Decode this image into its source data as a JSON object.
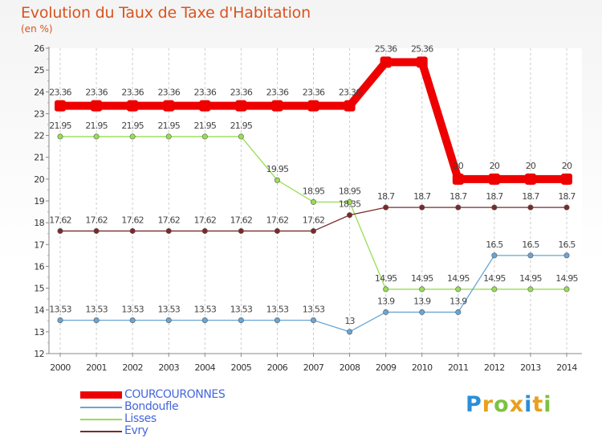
{
  "chart_data": {
    "type": "line",
    "title": "Evolution du Taux de Taxe d'Habitation",
    "subtitle": "(en %)",
    "xlabel": "",
    "ylabel": "",
    "x": [
      "2000",
      "2001",
      "2002",
      "2003",
      "2004",
      "2005",
      "2006",
      "2007",
      "2008",
      "2009",
      "2010",
      "2011",
      "2012",
      "2013",
      "2014"
    ],
    "ylim": [
      12,
      26
    ],
    "yticks": [
      "12",
      "13",
      "14",
      "15",
      "16",
      "17",
      "18",
      "19",
      "20",
      "21",
      "22",
      "23",
      "24",
      "25",
      "26"
    ],
    "grid": "vertical dashed",
    "legend_position": "bottom-left",
    "series": [
      {
        "name": "COURCOURONNES",
        "color": "#ee0000",
        "labels": [
          "23.36",
          "23.36",
          "23.36",
          "23.36",
          "23.36",
          "23.36",
          "23.36",
          "23.36",
          "23.36",
          "25.36",
          "25.36",
          "20",
          "20",
          "20",
          "20"
        ],
        "values": [
          23.36,
          23.36,
          23.36,
          23.36,
          23.36,
          23.36,
          23.36,
          23.36,
          23.36,
          25.36,
          25.36,
          20,
          20,
          20,
          20
        ]
      },
      {
        "name": "Bondoufle",
        "color": "#6aa6d4",
        "labels": [
          "13.53",
          "13.53",
          "13.53",
          "13.53",
          "13.53",
          "13.53",
          "13.53",
          "13.53",
          "13",
          "13.9",
          "13.9",
          "13.9",
          "16.5",
          "16.5",
          "16.5"
        ],
        "values": [
          13.53,
          13.53,
          13.53,
          13.53,
          13.53,
          13.53,
          13.53,
          13.53,
          13,
          13.9,
          13.9,
          13.9,
          16.5,
          16.5,
          16.5
        ]
      },
      {
        "name": "Lisses",
        "color": "#99dd55",
        "labels": [
          "21.95",
          "21.95",
          "21.95",
          "21.95",
          "21.95",
          "21.95",
          "19.95",
          "18.95",
          "18.95",
          "14.95",
          "14.95",
          "14.95",
          "14.95",
          "14.95",
          "14.95"
        ],
        "values": [
          21.95,
          21.95,
          21.95,
          21.95,
          21.95,
          21.95,
          19.95,
          18.95,
          18.95,
          14.95,
          14.95,
          14.95,
          14.95,
          14.95,
          14.95
        ]
      },
      {
        "name": "Evry",
        "color": "#7a2a2a",
        "labels": [
          "17.62",
          "17.62",
          "17.62",
          "17.62",
          "17.62",
          "17.62",
          "17.62",
          "17.62",
          "18.35",
          "18.7",
          "18.7",
          "18.7",
          "18.7",
          "18.7",
          "18.7"
        ],
        "values": [
          17.62,
          17.62,
          17.62,
          17.62,
          17.62,
          17.62,
          17.62,
          17.62,
          18.35,
          18.7,
          18.7,
          18.7,
          18.7,
          18.7,
          18.7
        ]
      }
    ],
    "legend": [
      {
        "label": "COURCOURONNES",
        "color": "#ee0000",
        "text_color": "#4466dd"
      },
      {
        "label": "Bondoufle",
        "color": "#6aa6d4",
        "text_color": "#4466dd"
      },
      {
        "label": "Lisses",
        "color": "#99dd55",
        "text_color": "#4466dd"
      },
      {
        "label": "Evry",
        "color": "#7a2a2a",
        "text_color": "#4466dd"
      }
    ]
  },
  "brand": {
    "letters": [
      "P",
      "r",
      "o",
      "x",
      "i",
      "t",
      "i"
    ],
    "colors": [
      "#2a8fd6",
      "#e8a01e",
      "#7cc242",
      "#e8a01e",
      "#2a8fd6",
      "#e8a01e",
      "#7cc242"
    ]
  }
}
